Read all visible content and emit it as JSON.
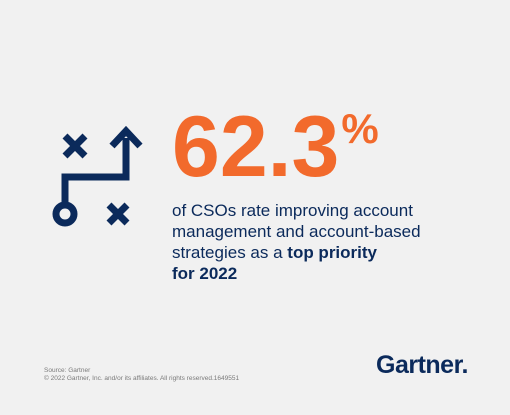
{
  "stat": {
    "value": "62.3",
    "unit": "%"
  },
  "description": {
    "line1": "of CSOs rate improving account",
    "line2": "management and account-based",
    "line3_prefix": "strategies as a ",
    "line3_bold": "top priority",
    "line4_bold": "for 2022"
  },
  "footer": {
    "source": "Source: Gartner",
    "copyright": "© 2022 Gartner, Inc. and/or its affiliates. All rights reserved.1649551"
  },
  "brand": {
    "name": "Gartner",
    "dot": "."
  },
  "colors": {
    "accent": "#f26a2c",
    "navy": "#0b2a5b",
    "background": "#f1f1f1"
  },
  "icons": {
    "strategy": "play-strategy-icon"
  }
}
